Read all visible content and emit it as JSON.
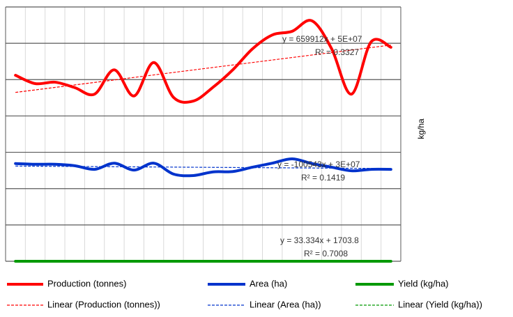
{
  "chart_data": {
    "type": "line",
    "y_label": "kg/ha",
    "categories": [
      null,
      null,
      null,
      null,
      null,
      null,
      null,
      null,
      null,
      null,
      null,
      null,
      null,
      null,
      null,
      null,
      null,
      null,
      null,
      null
    ],
    "ylim": [
      0,
      7
    ],
    "yticks": [
      0,
      1,
      2,
      3,
      4,
      5,
      6,
      7
    ],
    "grid": true,
    "series": [
      {
        "name": "Production (tonnes)",
        "color": "#ff0000",
        "values": [
          5.12,
          4.89,
          4.93,
          4.78,
          4.6,
          5.27,
          4.55,
          5.47,
          4.51,
          4.41,
          4.79,
          5.27,
          5.85,
          6.23,
          6.33,
          6.62,
          5.85,
          4.6,
          6.04,
          5.89
        ],
        "trendline": {
          "name": "Linear (Production (tonnes))",
          "equation": "y = 659912x + 5E+07",
          "r2": "R² = 0.3327"
        }
      },
      {
        "name": "Area (ha)",
        "color": "#0033cc",
        "values": [
          2.69,
          2.67,
          2.67,
          2.63,
          2.53,
          2.7,
          2.51,
          2.7,
          2.4,
          2.36,
          2.46,
          2.47,
          2.59,
          2.7,
          2.82,
          2.69,
          2.59,
          2.49,
          2.53,
          2.53
        ],
        "trendline": {
          "name": "Linear (Area (ha))",
          "equation": "y = -100543x + 3E+07",
          "r2": "R² = 0.1419"
        }
      },
      {
        "name": "Yield (kg/ha)",
        "color": "#009900",
        "values": [
          0,
          0,
          0,
          0,
          0,
          0,
          0,
          0,
          0,
          0,
          0,
          0,
          0,
          0,
          0,
          0,
          0,
          0,
          0,
          0
        ],
        "trendline": {
          "name": "Linear (Yield (kg/ha))",
          "equation": "y = 33.334x + 1703.8",
          "r2": "R² = 0.7008"
        }
      }
    ]
  }
}
